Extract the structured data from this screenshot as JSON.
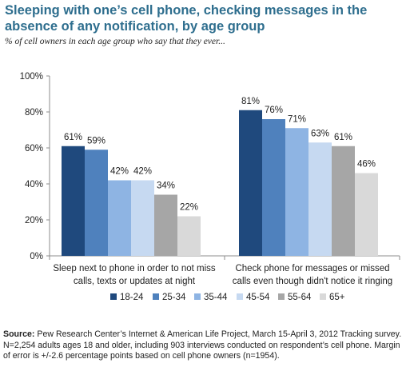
{
  "title": "Sleeping with one’s cell phone, checking messages in the absence of any notification, by age group",
  "subtitle": "% of cell owners in each age group who say that they ever...",
  "source": {
    "label": "Source:",
    "text": " Pew Research Center’s Internet & American Life Project, March 15-April 3, 2012 Tracking survey. N=2,254 adults ages 18 and older, including 903 interviews conducted on respondent’s cell phone. Margin of error is +/-2.6 percentage points based on cell phone owners (n=1954)."
  },
  "chart_data": {
    "type": "bar",
    "categories": [
      "Sleep next to phone in order to not miss calls, texts or updates at night",
      "Check phone for messages or missed calls even though didn't notice it ringing"
    ],
    "series": [
      {
        "name": "18-24",
        "color": "#1f497d",
        "values": [
          61,
          81
        ],
        "labels": [
          "61%",
          "81%"
        ]
      },
      {
        "name": "25-34",
        "color": "#4f81bd",
        "values": [
          59,
          76
        ],
        "labels": [
          "59%",
          "76%"
        ]
      },
      {
        "name": "35-44",
        "color": "#8eb4e3",
        "values": [
          42,
          71
        ],
        "labels": [
          "42%",
          "71%"
        ]
      },
      {
        "name": "45-54",
        "color": "#c6d9f1",
        "values": [
          42,
          63
        ],
        "labels": [
          "42%",
          "63%"
        ]
      },
      {
        "name": "55-64",
        "color": "#a6a6a6",
        "values": [
          34,
          61
        ],
        "labels": [
          "34%",
          "61%"
        ]
      },
      {
        "name": "65+",
        "color": "#d9d9d9",
        "values": [
          22,
          46
        ],
        "labels": [
          "22%",
          "46%"
        ]
      }
    ],
    "yticks": [
      "0%",
      "20%",
      "40%",
      "60%",
      "80%",
      "100%"
    ],
    "ylim": [
      0,
      100
    ],
    "grid": false,
    "legend_position": "bottom"
  }
}
